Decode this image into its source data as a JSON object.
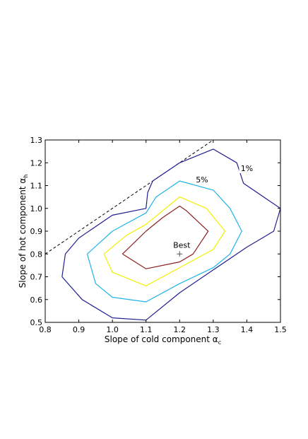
{
  "chart_data": {
    "type": "contour",
    "xlabel": "Slope of cold component α",
    "xlabel_sub": "c",
    "ylabel": "Slope of hot component α",
    "ylabel_sub": "h",
    "xlim": [
      0.8,
      1.5
    ],
    "ylim": [
      0.5,
      1.3
    ],
    "xticks": [
      {
        "value": 0.8,
        "label": "0.8"
      },
      {
        "value": 0.9,
        "label": "0.9"
      },
      {
        "value": 1.0,
        "label": "1.0"
      },
      {
        "value": 1.1,
        "label": "1.1"
      },
      {
        "value": 1.2,
        "label": "1.2"
      },
      {
        "value": 1.3,
        "label": "1.3"
      },
      {
        "value": 1.4,
        "label": "1.4"
      },
      {
        "value": 1.5,
        "label": "1.5"
      }
    ],
    "yticks": [
      {
        "value": 0.5,
        "label": "0.5"
      },
      {
        "value": 0.6,
        "label": "0.6"
      },
      {
        "value": 0.7,
        "label": "0.7"
      },
      {
        "value": 0.8,
        "label": "0.8"
      },
      {
        "value": 0.9,
        "label": "0.9"
      },
      {
        "value": 1.0,
        "label": "1.0"
      },
      {
        "value": 1.1,
        "label": "1.1"
      },
      {
        "value": 1.2,
        "label": "1.2"
      },
      {
        "value": 1.3,
        "label": "1.3"
      }
    ],
    "grid": false,
    "best_fit": {
      "label": "Best",
      "x": 1.2,
      "y": 0.8
    },
    "dashed_line": {
      "x": [
        0.8,
        1.3
      ],
      "y": [
        0.8,
        1.3
      ],
      "color": "#000000"
    },
    "contours": [
      {
        "color": "#1f1f8f",
        "label": "1%",
        "label_at": {
          "x": 1.4,
          "y": 1.17
        },
        "points": [
          [
            0.85,
            0.7
          ],
          [
            0.86,
            0.8
          ],
          [
            0.9,
            0.87
          ],
          [
            1.0,
            0.97
          ],
          [
            1.1,
            1.0
          ],
          [
            1.105,
            1.07
          ],
          [
            1.12,
            1.12
          ],
          [
            1.2,
            1.2
          ],
          [
            1.3,
            1.26
          ],
          [
            1.37,
            1.2
          ],
          [
            1.39,
            1.11
          ],
          [
            1.47,
            1.03
          ],
          [
            1.5,
            1.0
          ],
          [
            1.48,
            0.9
          ],
          [
            1.4,
            0.83
          ],
          [
            1.3,
            0.73
          ],
          [
            1.2,
            0.63
          ],
          [
            1.1,
            0.51
          ],
          [
            1.0,
            0.52
          ],
          [
            0.91,
            0.6
          ],
          [
            0.85,
            0.7
          ]
        ]
      },
      {
        "color": "#1fb4e6",
        "label": "5%",
        "label_at": {
          "x": 1.2665,
          "y": 1.12
        },
        "points": [
          [
            0.925,
            0.8
          ],
          [
            1.0,
            0.9
          ],
          [
            1.1,
            0.98
          ],
          [
            1.13,
            1.05
          ],
          [
            1.2,
            1.12
          ],
          [
            1.3,
            1.08
          ],
          [
            1.35,
            1.0
          ],
          [
            1.385,
            0.9
          ],
          [
            1.35,
            0.8
          ],
          [
            1.3,
            0.74
          ],
          [
            1.2,
            0.67
          ],
          [
            1.1,
            0.59
          ],
          [
            1.0,
            0.61
          ],
          [
            0.95,
            0.67
          ],
          [
            0.925,
            0.8
          ]
        ]
      },
      {
        "color": "#f0f000",
        "points": [
          [
            0.975,
            0.8
          ],
          [
            1.04,
            0.88
          ],
          [
            1.1,
            0.93
          ],
          [
            1.15,
            0.99
          ],
          [
            1.2,
            1.05
          ],
          [
            1.28,
            1.0
          ],
          [
            1.335,
            0.9
          ],
          [
            1.3,
            0.82
          ],
          [
            1.2,
            0.74
          ],
          [
            1.1,
            0.66
          ],
          [
            1.0,
            0.72
          ],
          [
            0.975,
            0.8
          ]
        ]
      },
      {
        "color": "#8b2020",
        "points": [
          [
            1.03,
            0.8
          ],
          [
            1.1,
            0.9
          ],
          [
            1.15,
            0.96
          ],
          [
            1.2,
            1.01
          ],
          [
            1.22,
            0.99
          ],
          [
            1.285,
            0.9
          ],
          [
            1.24,
            0.8
          ],
          [
            1.2,
            0.765
          ],
          [
            1.1,
            0.735
          ],
          [
            1.03,
            0.8
          ]
        ]
      }
    ]
  }
}
